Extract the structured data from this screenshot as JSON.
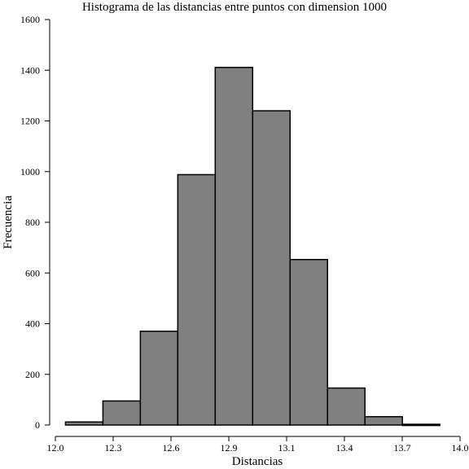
{
  "chart_data": {
    "type": "bar",
    "title": "Histograma de las distancias entre puntos con dimension 1000",
    "xlabel": "Distancias",
    "ylabel": "Frecuencia",
    "xlim": [
      12.0,
      14.0
    ],
    "ylim": [
      0,
      1600
    ],
    "x_ticks": [
      "12.0",
      "12.3",
      "12.6",
      "12.9",
      "13.1",
      "13.4",
      "13.7",
      "14.0"
    ],
    "y_ticks": [
      "0",
      "200",
      "400",
      "600",
      "800",
      "1000",
      "1200",
      "1400",
      "1600"
    ],
    "bins": [
      {
        "start": 12.05,
        "end": 12.235,
        "value": 12
      },
      {
        "start": 12.235,
        "end": 12.42,
        "value": 95
      },
      {
        "start": 12.42,
        "end": 12.605,
        "value": 370
      },
      {
        "start": 12.605,
        "end": 12.79,
        "value": 988
      },
      {
        "start": 12.79,
        "end": 12.975,
        "value": 1411
      },
      {
        "start": 12.975,
        "end": 13.16,
        "value": 1240
      },
      {
        "start": 13.16,
        "end": 13.345,
        "value": 653
      },
      {
        "start": 13.345,
        "end": 13.53,
        "value": 146
      },
      {
        "start": 13.53,
        "end": 13.715,
        "value": 33
      },
      {
        "start": 13.715,
        "end": 13.9,
        "value": 3
      }
    ],
    "bar_color": "#808080",
    "edge_color": "#000000",
    "grid": false,
    "legend": "none"
  }
}
